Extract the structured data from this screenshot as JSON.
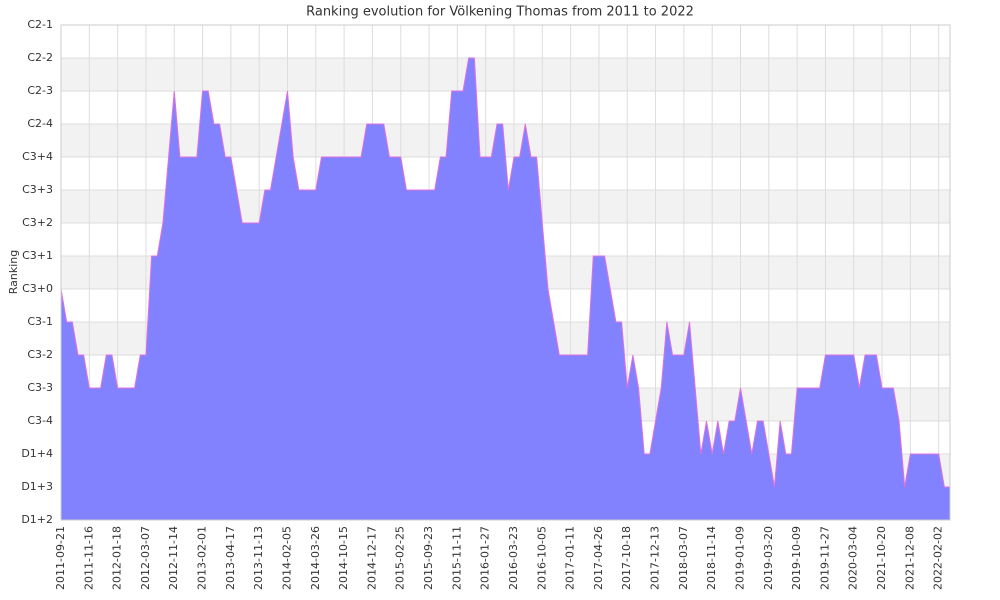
{
  "chart_data": {
    "type": "area",
    "title": "Ranking evolution for Völkening Thomas from 2011 to 2022",
    "y_label": "Ranking",
    "categories": [
      "2011-09-21",
      null,
      null,
      null,
      null,
      "2011-11-16",
      null,
      null,
      null,
      null,
      "2012-01-18",
      null,
      null,
      null,
      null,
      "2012-03-07",
      null,
      null,
      null,
      null,
      "2012-11-14",
      null,
      null,
      null,
      null,
      "2013-02-01",
      null,
      null,
      null,
      null,
      "2013-04-17",
      null,
      null,
      null,
      null,
      "2013-11-13",
      null,
      null,
      null,
      null,
      "2014-02-05",
      null,
      null,
      null,
      null,
      "2014-03-26",
      null,
      null,
      null,
      null,
      "2014-10-15",
      null,
      null,
      null,
      null,
      "2014-12-17",
      null,
      null,
      null,
      null,
      "2015-02-25",
      null,
      null,
      null,
      null,
      "2015-09-23",
      null,
      null,
      null,
      null,
      "2015-11-11",
      null,
      null,
      null,
      null,
      "2016-01-27",
      null,
      null,
      null,
      null,
      "2016-03-23",
      null,
      null,
      null,
      null,
      "2016-10-05",
      null,
      null,
      null,
      null,
      "2017-01-11",
      null,
      null,
      null,
      null,
      "2017-04-26",
      null,
      null,
      null,
      null,
      "2017-10-18",
      null,
      null,
      null,
      null,
      "2017-12-13",
      null,
      null,
      null,
      null,
      "2018-03-07",
      null,
      null,
      null,
      null,
      "2018-11-14",
      null,
      null,
      null,
      null,
      "2019-01-09",
      null,
      null,
      null,
      null,
      "2019-03-20",
      null,
      null,
      null,
      null,
      "2019-10-09",
      null,
      null,
      null,
      null,
      "2019-11-27",
      null,
      null,
      null,
      null,
      "2020-03-04",
      null,
      null,
      null,
      null,
      "2021-10-20",
      null,
      null,
      null,
      null,
      "2021-12-08",
      null,
      null,
      null,
      null,
      "2022-02-02",
      null,
      null
    ],
    "values": [
      7,
      6,
      6,
      5,
      5,
      4,
      4,
      4,
      5,
      5,
      4,
      4,
      4,
      4,
      5,
      5,
      8,
      8,
      9,
      11,
      13,
      11,
      11,
      11,
      11,
      13,
      13,
      12,
      12,
      11,
      11,
      10,
      9,
      9,
      9,
      9,
      10,
      10,
      11,
      12,
      13,
      11,
      10,
      10,
      10,
      10,
      11,
      11,
      11,
      11,
      11,
      11,
      11,
      11,
      12,
      12,
      12,
      12,
      11,
      11,
      11,
      10,
      10,
      10,
      10,
      10,
      10,
      11,
      11,
      13,
      13,
      13,
      14,
      14,
      11,
      11,
      11,
      12,
      12,
      10,
      11,
      11,
      12,
      11,
      11,
      9,
      7,
      6,
      5,
      5,
      5,
      5,
      5,
      5,
      8,
      8,
      8,
      7,
      6,
      6,
      4,
      5,
      4,
      2,
      2,
      3,
      4,
      6,
      5,
      5,
      5,
      6,
      4,
      2,
      3,
      2,
      3,
      2,
      3,
      3,
      4,
      3,
      2,
      3,
      3,
      2,
      1,
      3,
      2,
      2,
      4,
      4,
      4,
      4,
      4,
      5,
      5,
      5,
      5,
      5,
      5,
      4,
      5,
      5,
      5,
      4,
      4,
      4,
      3,
      1,
      2,
      2,
      2,
      2,
      2,
      2,
      1,
      1
    ],
    "color": "#7b7bff",
    "line_color": "#e070e0",
    "ylim": [
      0,
      15
    ],
    "yticks": [
      {
        "value": 0,
        "label": "D1+2"
      },
      {
        "value": 1,
        "label": "D1+3"
      },
      {
        "value": 2,
        "label": "D1+4"
      },
      {
        "value": 3,
        "label": "C3-4"
      },
      {
        "value": 4,
        "label": "C3-3"
      },
      {
        "value": 5,
        "label": "C3-2"
      },
      {
        "value": 6,
        "label": "C3-1"
      },
      {
        "value": 7,
        "label": "C3+0"
      },
      {
        "value": 8,
        "label": "C3+1"
      },
      {
        "value": 9,
        "label": "C3+2"
      },
      {
        "value": 10,
        "label": "C3+3"
      },
      {
        "value": 11,
        "label": "C3+4"
      },
      {
        "value": 12,
        "label": "C2-4"
      },
      {
        "value": 13,
        "label": "C2-3"
      },
      {
        "value": 14,
        "label": "C2-2"
      },
      {
        "value": 15,
        "label": "C2-1"
      }
    ],
    "grid": true
  }
}
